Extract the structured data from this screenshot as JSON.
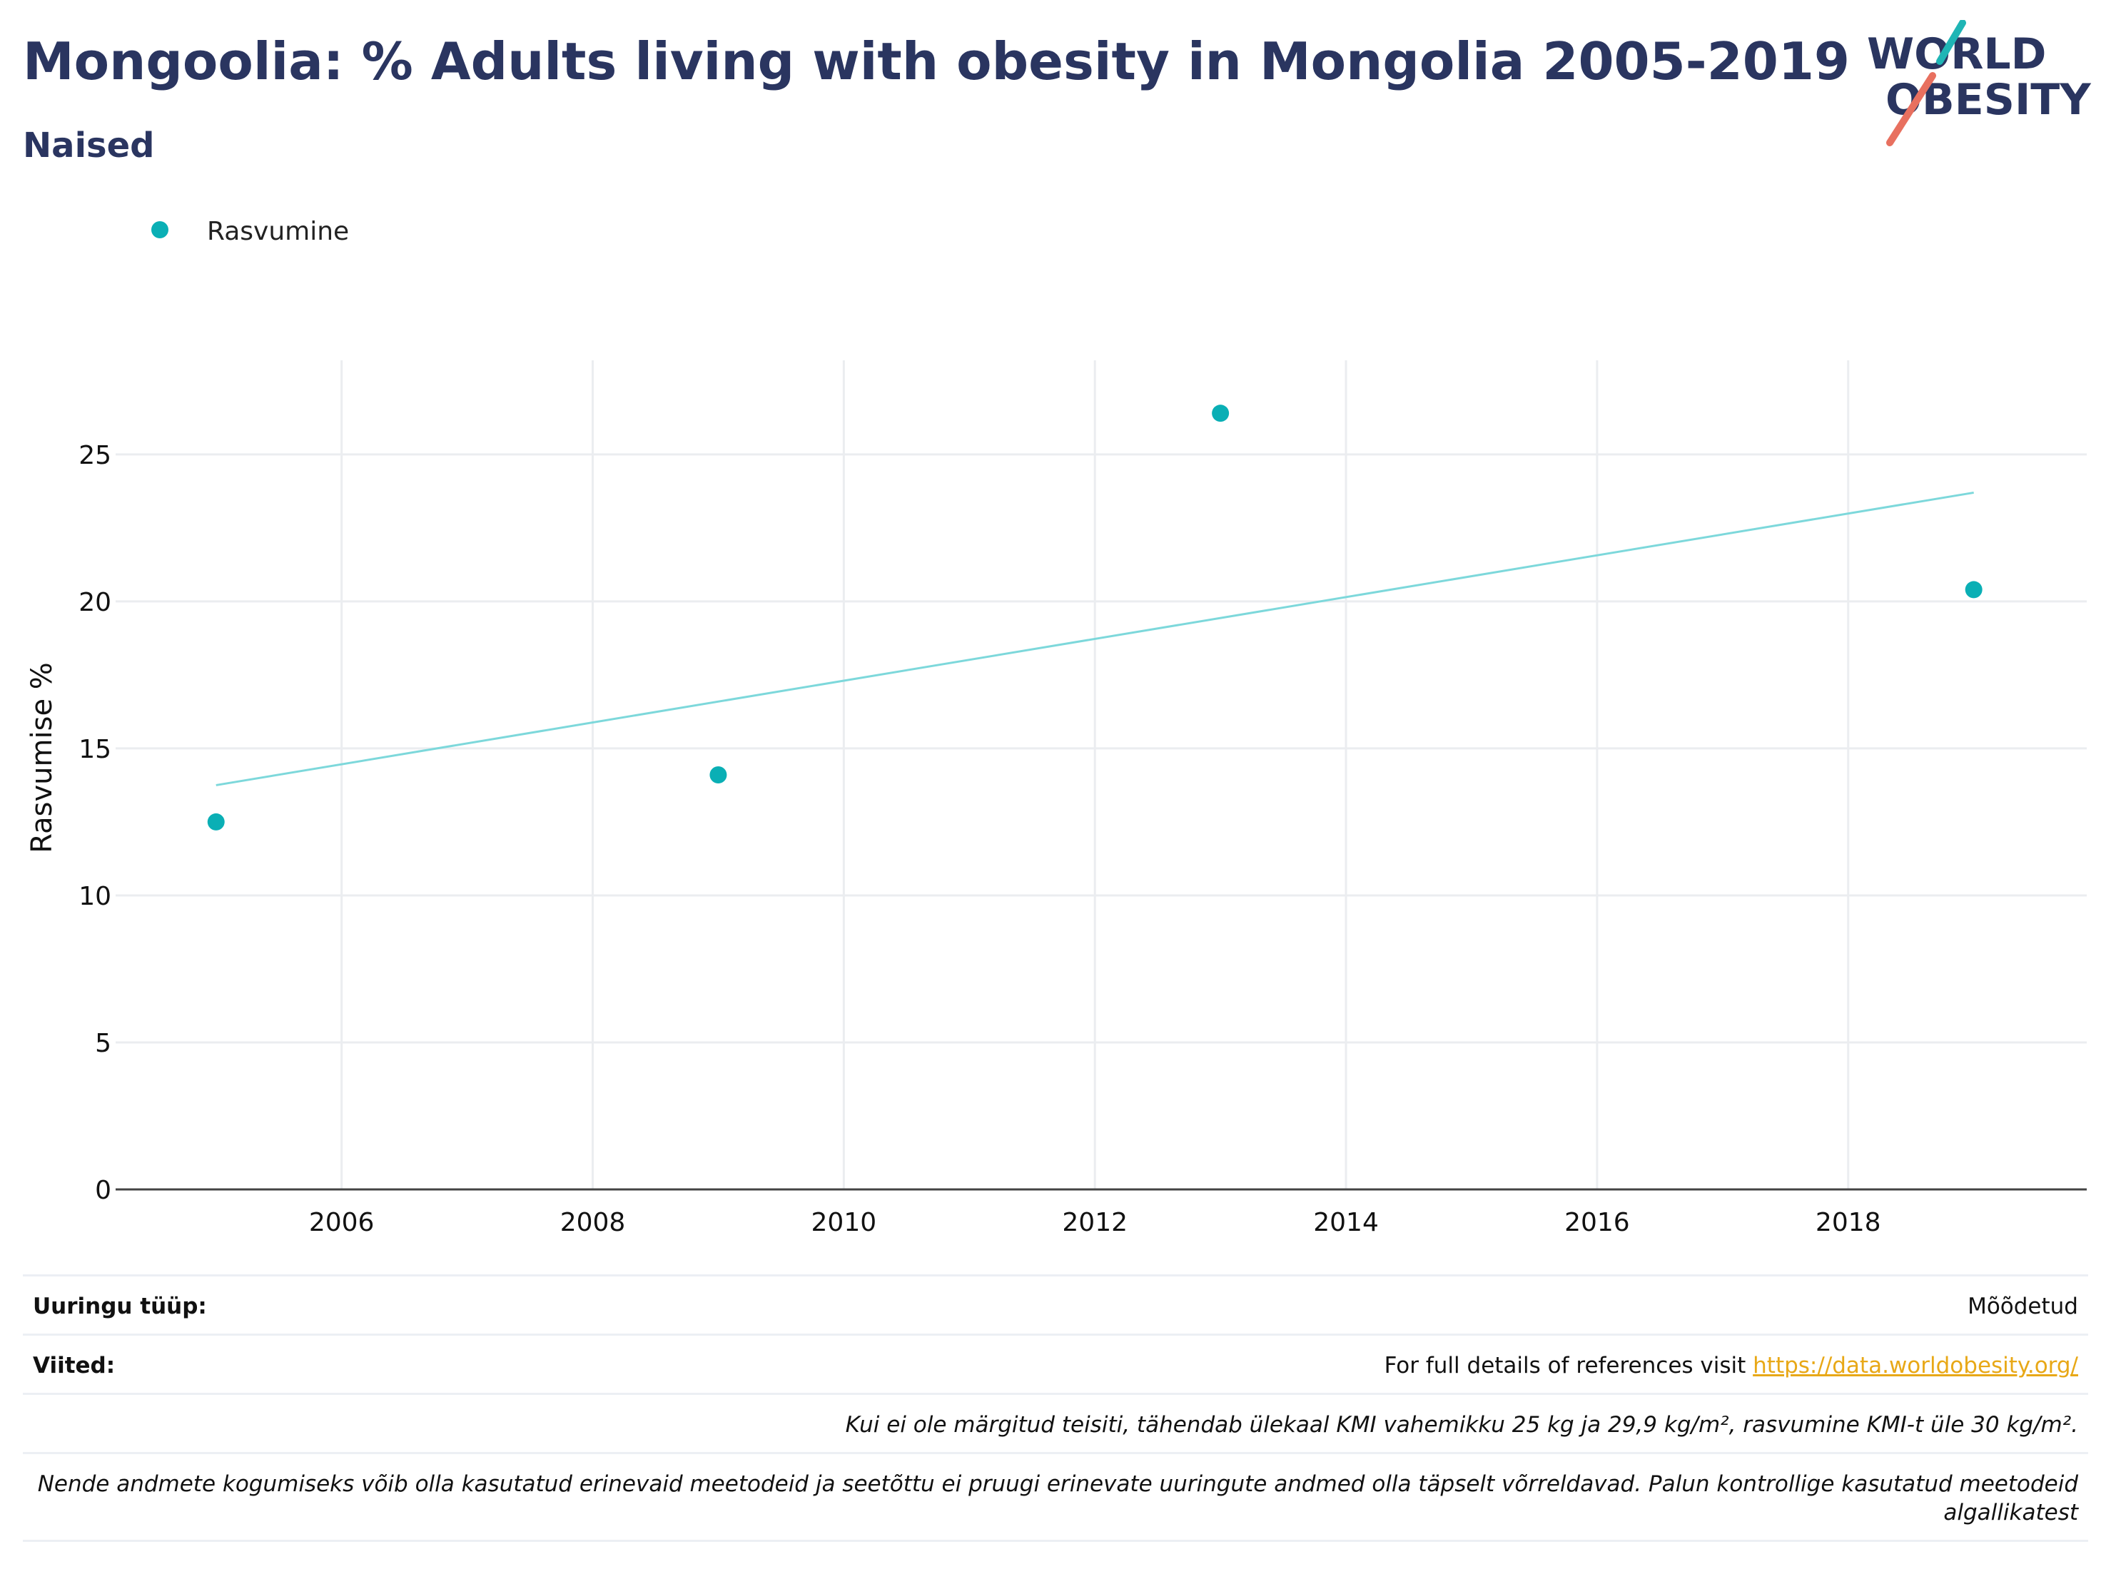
{
  "header": {
    "title": "Mongoolia: % Adults living with obesity in Mongolia 2005-2019",
    "subtitle": "Naised"
  },
  "logo": {
    "line1": "WORLD",
    "line2": "OBESITY",
    "colors": {
      "navy": "#2a3560",
      "teal": "#1fb5b5",
      "coral": "#e8705f"
    }
  },
  "chart_data": {
    "type": "scatter",
    "x": [
      2005,
      2009,
      2013,
      2019
    ],
    "series": [
      {
        "name": "Rasvumine",
        "color": "#0aafb5",
        "values": [
          12.5,
          14.1,
          26.4,
          20.4
        ]
      }
    ],
    "trendline": {
      "color": "#7dd8db",
      "x": [
        2005,
        2019
      ],
      "y": [
        13.75,
        23.7
      ]
    },
    "xlabel": "",
    "ylabel": "Rasvumise %",
    "xlim": [
      2004.2,
      2019.9
    ],
    "ylim": [
      0,
      28.2
    ],
    "xticks": [
      2006,
      2008,
      2010,
      2012,
      2014,
      2016,
      2018
    ],
    "yticks": [
      0,
      5,
      10,
      15,
      20,
      25
    ],
    "grid": true,
    "legend_position": "top-left"
  },
  "footer": {
    "survey_type_label": "Uuringu tüüp:",
    "survey_type_value": "Mõõdetud",
    "references_label": "Viited:",
    "references_text": "For full details of references visit ",
    "references_link": "https://data.worldobesity.org/",
    "note1": "Kui ei ole märgitud teisiti, tähendab ülekaal KMI vahemikku 25 kg ja 29,9 kg/m², rasvumine KMI-t üle 30 kg/m².",
    "note2_line1": "Nende andmete kogumiseks võib olla kasutatud erinevaid meetodeid ja seetõttu ei pruugi erinevate uuringute andmed olla täpselt võrreldavad. Palun kontrollige kasutatud meetodeid",
    "note2_line2": "algallikatest"
  }
}
